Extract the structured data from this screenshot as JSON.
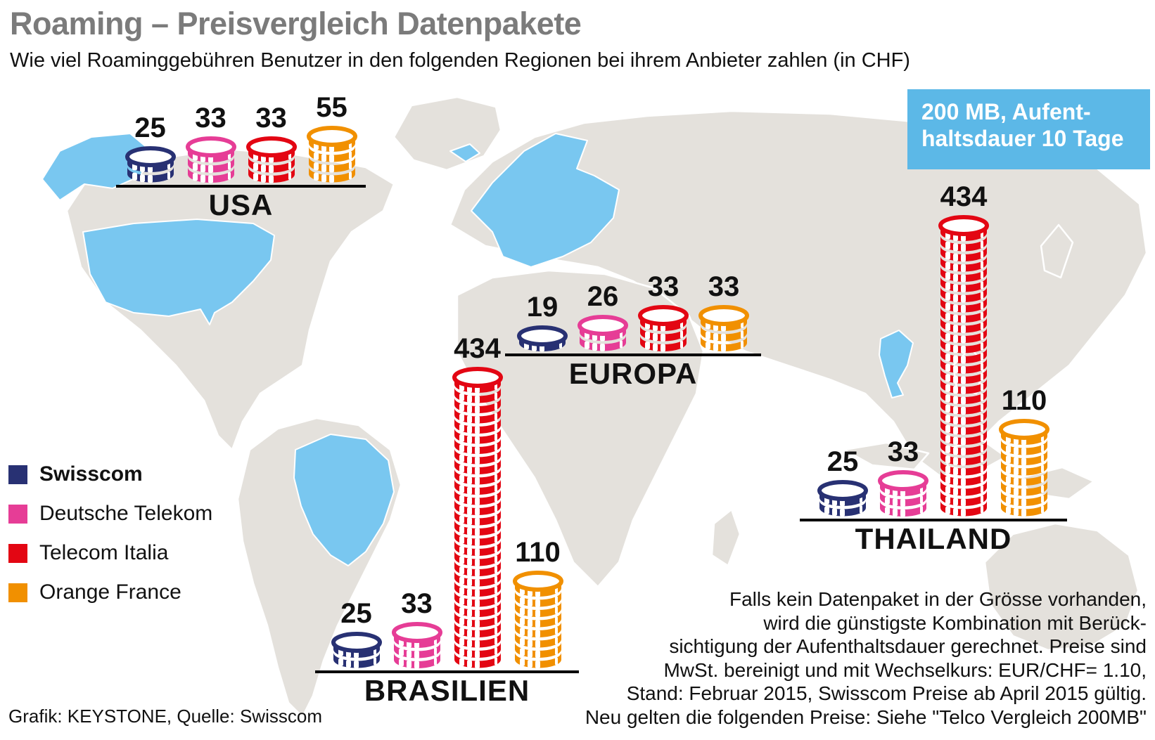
{
  "header": {
    "title": "Roaming – Preisvergleich Datenpakete",
    "subtitle": "Wie viel Roaminggebühren Benutzer in den folgenden Regionen bei ihrem Anbieter zahlen (in CHF)"
  },
  "callout": {
    "line1": "200 MB, Aufent-",
    "line2": "haltsdauer 10 Tage"
  },
  "chart_data": {
    "type": "pictorial-bar",
    "unit": "CHF",
    "description": "Roaming fees per provider and region shown as stacks of coins; stack height proportional to price",
    "legend_position": "middle-left",
    "providers": [
      {
        "name": "Swisscom",
        "color": "#283173",
        "bold": true
      },
      {
        "name": "Deutsche Telekom",
        "color": "#e63d96",
        "bold": false
      },
      {
        "name": "Telecom Italia",
        "color": "#e30613",
        "bold": false
      },
      {
        "name": "Orange France",
        "color": "#f19000",
        "bold": false
      }
    ],
    "regions": [
      {
        "name": "USA",
        "values": [
          25,
          33,
          33,
          55
        ],
        "coins": [
          2,
          3,
          3,
          4
        ]
      },
      {
        "name": "EUROPA",
        "values": [
          19,
          26,
          33,
          33
        ],
        "coins": [
          1,
          2,
          3,
          3
        ]
      },
      {
        "name": "BRASILIEN",
        "values": [
          25,
          33,
          434,
          110
        ],
        "coins": [
          2,
          3,
          28,
          8
        ]
      },
      {
        "name": "THAILAND",
        "values": [
          25,
          33,
          434,
          110
        ],
        "coins": [
          2,
          3,
          28,
          8
        ]
      }
    ]
  },
  "note": {
    "lines": [
      "Falls kein Datenpaket in der Grösse vorhanden,",
      "wird die günstigste Kombination mit Berück-",
      "sichtigung der Aufenthaltsdauer gerechnet. Preise sind",
      "MwSt. bereinigt und mit Wechselkurs: EUR/CHF= 1.10,",
      "Stand: Februar 2015, Swisscom Preise ab April 2015 gültig.",
      "Neu gelten die folgenden Preise: Siehe \"Telco Vergleich 200MB\""
    ]
  },
  "footer": {
    "credit": "Grafik: KEYSTONE, Quelle: Swisscom"
  },
  "colors": {
    "map_land": "#e4e1dc",
    "map_highlight": "#79c7f0",
    "callout_bg": "#5cb8e7",
    "title_gray": "#7b7b7b",
    "text": "#111111",
    "baseline": "#000000"
  }
}
